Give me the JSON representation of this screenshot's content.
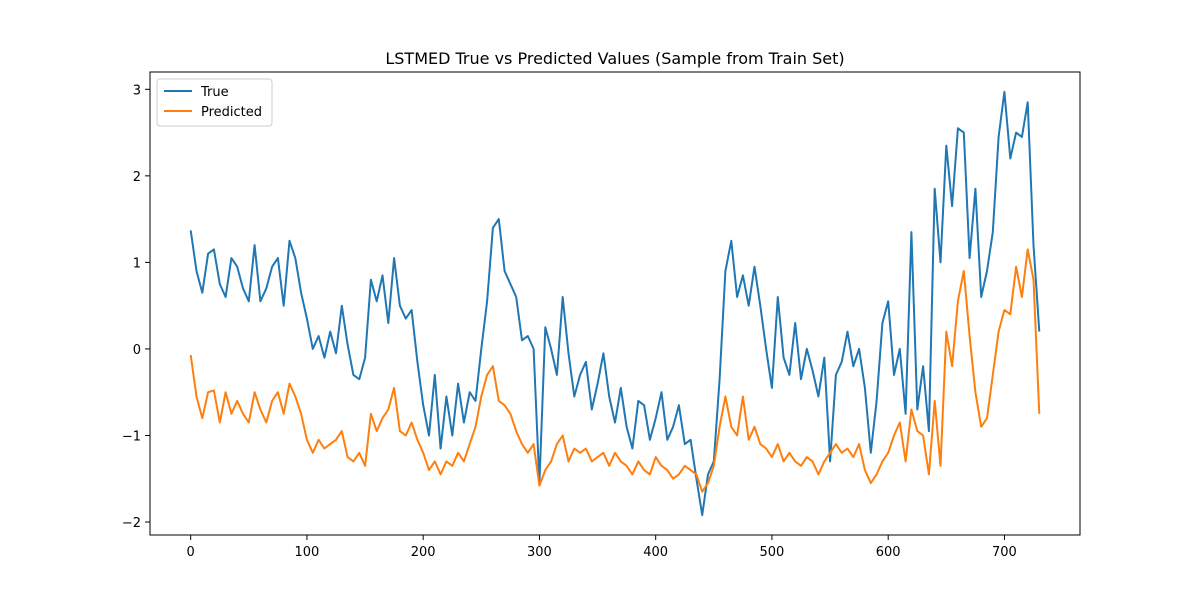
{
  "chart_data": {
    "type": "line",
    "title": "LSTMED True vs Predicted Values (Sample from Train Set)",
    "xlabel": "",
    "ylabel": "",
    "xlim": [
      -35,
      765
    ],
    "ylim": [
      -2.15,
      3.2
    ],
    "xticks": [
      0,
      100,
      200,
      300,
      400,
      500,
      600,
      700
    ],
    "yticks": [
      -2,
      -1,
      0,
      1,
      2,
      3
    ],
    "grid": false,
    "legend_position": "upper-left",
    "series": [
      {
        "name": "True",
        "color": "#1f77b4",
        "x": [
          0,
          5,
          10,
          15,
          20,
          25,
          30,
          35,
          40,
          45,
          50,
          55,
          60,
          65,
          70,
          75,
          80,
          85,
          90,
          95,
          100,
          105,
          110,
          115,
          120,
          125,
          130,
          135,
          140,
          145,
          150,
          155,
          160,
          165,
          170,
          175,
          180,
          185,
          190,
          195,
          200,
          205,
          210,
          215,
          220,
          225,
          230,
          235,
          240,
          245,
          250,
          255,
          260,
          265,
          270,
          275,
          280,
          285,
          290,
          295,
          300,
          305,
          310,
          315,
          320,
          325,
          330,
          335,
          340,
          345,
          350,
          355,
          360,
          365,
          370,
          375,
          380,
          385,
          390,
          395,
          400,
          405,
          410,
          415,
          420,
          425,
          430,
          435,
          440,
          445,
          450,
          455,
          460,
          465,
          470,
          475,
          480,
          485,
          490,
          495,
          500,
          505,
          510,
          515,
          520,
          525,
          530,
          535,
          540,
          545,
          550,
          555,
          560,
          565,
          570,
          575,
          580,
          585,
          590,
          595,
          600,
          605,
          610,
          615,
          620,
          625,
          630,
          635,
          640,
          645,
          650,
          655,
          660,
          665,
          670,
          675,
          680,
          685,
          690,
          695,
          700,
          705,
          710,
          715,
          720,
          725,
          730
        ],
        "values": [
          1.37,
          0.9,
          0.65,
          1.1,
          1.15,
          0.75,
          0.6,
          1.05,
          0.95,
          0.7,
          0.55,
          1.2,
          0.55,
          0.7,
          0.95,
          1.05,
          0.5,
          1.25,
          1.05,
          0.65,
          0.35,
          0.0,
          0.15,
          -0.1,
          0.2,
          -0.05,
          0.5,
          0.05,
          -0.3,
          -0.35,
          -0.1,
          0.8,
          0.55,
          0.85,
          0.3,
          1.05,
          0.5,
          0.35,
          0.45,
          -0.15,
          -0.65,
          -1.0,
          -0.3,
          -1.15,
          -0.55,
          -1.0,
          -0.4,
          -0.85,
          -0.5,
          -0.6,
          0.0,
          0.55,
          1.4,
          1.5,
          0.9,
          0.75,
          0.6,
          0.1,
          0.15,
          0.0,
          -1.55,
          0.25,
          0.0,
          -0.3,
          0.6,
          -0.05,
          -0.55,
          -0.3,
          -0.15,
          -0.7,
          -0.4,
          -0.05,
          -0.55,
          -0.85,
          -0.45,
          -0.9,
          -1.15,
          -0.6,
          -0.65,
          -1.05,
          -0.8,
          -0.5,
          -1.05,
          -0.9,
          -0.65,
          -1.1,
          -1.05,
          -1.5,
          -1.92,
          -1.45,
          -1.3,
          -0.35,
          0.9,
          1.25,
          0.6,
          0.85,
          0.5,
          0.95,
          0.5,
          0.0,
          -0.45,
          0.6,
          -0.1,
          -0.3,
          0.3,
          -0.35,
          0.0,
          -0.25,
          -0.55,
          -0.1,
          -1.3,
          -0.3,
          -0.15,
          0.2,
          -0.2,
          0.0,
          -0.45,
          -1.2,
          -0.6,
          0.3,
          0.55,
          -0.3,
          0.0,
          -0.75,
          1.35,
          -0.7,
          -0.2,
          -0.95,
          1.85,
          1.0,
          2.35,
          1.65,
          2.55,
          2.5,
          1.05,
          1.85,
          0.6,
          0.9,
          1.35,
          2.45,
          2.97,
          2.2,
          2.5,
          2.45,
          2.85,
          1.2,
          0.2
        ]
      },
      {
        "name": "Predicted",
        "color": "#ff7f0e",
        "x": [
          0,
          5,
          10,
          15,
          20,
          25,
          30,
          35,
          40,
          45,
          50,
          55,
          60,
          65,
          70,
          75,
          80,
          85,
          90,
          95,
          100,
          105,
          110,
          115,
          120,
          125,
          130,
          135,
          140,
          145,
          150,
          155,
          160,
          165,
          170,
          175,
          180,
          185,
          190,
          195,
          200,
          205,
          210,
          215,
          220,
          225,
          230,
          235,
          240,
          245,
          250,
          255,
          260,
          265,
          270,
          275,
          280,
          285,
          290,
          295,
          300,
          305,
          310,
          315,
          320,
          325,
          330,
          335,
          340,
          345,
          350,
          355,
          360,
          365,
          370,
          375,
          380,
          385,
          390,
          395,
          400,
          405,
          410,
          415,
          420,
          425,
          430,
          435,
          440,
          445,
          450,
          455,
          460,
          465,
          470,
          475,
          480,
          485,
          490,
          495,
          500,
          505,
          510,
          515,
          520,
          525,
          530,
          535,
          540,
          545,
          550,
          555,
          560,
          565,
          570,
          575,
          580,
          585,
          590,
          595,
          600,
          605,
          610,
          615,
          620,
          625,
          630,
          635,
          640,
          645,
          650,
          655,
          660,
          665,
          670,
          675,
          680,
          685,
          690,
          695,
          700,
          705,
          710,
          715,
          720,
          725,
          730
        ],
        "values": [
          -0.07,
          -0.55,
          -0.8,
          -0.5,
          -0.48,
          -0.85,
          -0.5,
          -0.75,
          -0.6,
          -0.75,
          -0.85,
          -0.5,
          -0.7,
          -0.85,
          -0.6,
          -0.5,
          -0.75,
          -0.4,
          -0.55,
          -0.75,
          -1.05,
          -1.2,
          -1.05,
          -1.15,
          -1.1,
          -1.05,
          -0.95,
          -1.25,
          -1.3,
          -1.2,
          -1.35,
          -0.75,
          -0.95,
          -0.8,
          -0.7,
          -0.45,
          -0.95,
          -1.0,
          -0.85,
          -1.05,
          -1.2,
          -1.4,
          -1.3,
          -1.45,
          -1.3,
          -1.35,
          -1.2,
          -1.3,
          -1.1,
          -0.9,
          -0.55,
          -0.3,
          -0.2,
          -0.6,
          -0.65,
          -0.75,
          -0.95,
          -1.1,
          -1.2,
          -1.1,
          -1.58,
          -1.4,
          -1.3,
          -1.1,
          -1.0,
          -1.3,
          -1.15,
          -1.2,
          -1.15,
          -1.3,
          -1.25,
          -1.2,
          -1.35,
          -1.2,
          -1.3,
          -1.35,
          -1.45,
          -1.3,
          -1.4,
          -1.45,
          -1.25,
          -1.35,
          -1.4,
          -1.5,
          -1.45,
          -1.35,
          -1.4,
          -1.45,
          -1.65,
          -1.55,
          -1.35,
          -0.9,
          -0.55,
          -0.9,
          -1.0,
          -0.55,
          -1.05,
          -0.9,
          -1.1,
          -1.15,
          -1.25,
          -1.1,
          -1.3,
          -1.2,
          -1.3,
          -1.35,
          -1.25,
          -1.3,
          -1.45,
          -1.3,
          -1.2,
          -1.1,
          -1.2,
          -1.15,
          -1.25,
          -1.1,
          -1.4,
          -1.55,
          -1.45,
          -1.3,
          -1.2,
          -1.0,
          -0.85,
          -1.3,
          -0.7,
          -0.95,
          -1.0,
          -1.45,
          -0.6,
          -1.35,
          0.2,
          -0.2,
          0.55,
          0.9,
          0.15,
          -0.5,
          -0.9,
          -0.8,
          -0.3,
          0.2,
          0.45,
          0.4,
          0.95,
          0.6,
          1.15,
          0.8,
          -0.75
        ]
      }
    ]
  }
}
